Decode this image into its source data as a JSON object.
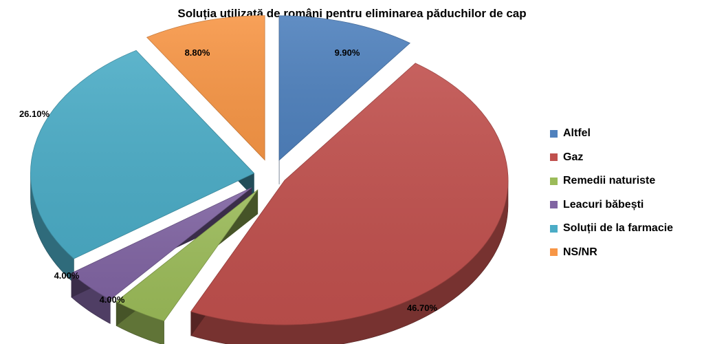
{
  "chart_data": {
    "type": "pie",
    "title": "Soluția utilizată de români pentru eliminarea păduchilor de cap",
    "value_format": "percent_2dp",
    "three_d": true,
    "exploded": true,
    "legend_position": "right",
    "categories": [
      "Altfel",
      "Gaz",
      "Remedii naturiste",
      "Leacuri băbești",
      "Soluții de la farmacie",
      "NS/NR"
    ],
    "values": [
      9.9,
      46.7,
      4.0,
      4.0,
      26.1,
      8.8
    ],
    "data_labels": [
      "9.90%",
      "46.70%",
      "4.00%",
      "4.00%",
      "26.10%",
      "8.80%"
    ],
    "colors": [
      "#4F81BD",
      "#C0504D",
      "#9BBB59",
      "#8064A2",
      "#4BACC6",
      "#F79646"
    ]
  }
}
